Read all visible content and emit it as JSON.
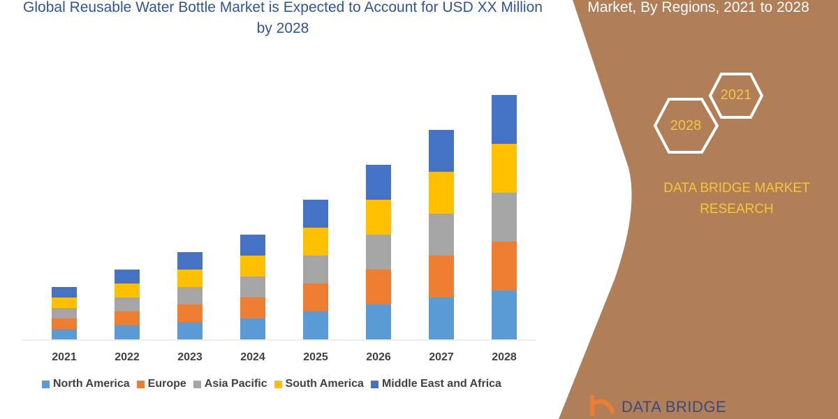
{
  "title_left": "Global Reusable Water Bottle Market is Expected to Account for USD XX Million by 2028",
  "title_right": "Market, By Regions, 2021 to 2028",
  "hexagons": [
    "2021",
    "2028"
  ],
  "brand": "DATA BRIDGE MARKET RESEARCH",
  "logo_text": "DATA BRIDGE",
  "colors": {
    "panel": "#B07F57",
    "hex_text": "#F5C542",
    "title": "#2F5597"
  },
  "chart_data": {
    "type": "bar",
    "stacked": true,
    "categories": [
      "2021",
      "2022",
      "2023",
      "2024",
      "2025",
      "2026",
      "2027",
      "2028"
    ],
    "note_units": "relative (no value axis shown)",
    "series": [
      {
        "name": "North America",
        "color": "#5B9BD5",
        "values": [
          15,
          20,
          25,
          30,
          40,
          50,
          60,
          70
        ]
      },
      {
        "name": "Europe",
        "color": "#ED7D31",
        "values": [
          15,
          20,
          25,
          30,
          40,
          50,
          60,
          70
        ]
      },
      {
        "name": "Asia Pacific",
        "color": "#A5A5A5",
        "values": [
          15,
          20,
          25,
          30,
          40,
          50,
          60,
          70
        ]
      },
      {
        "name": "South America",
        "color": "#FFC000",
        "values": [
          15,
          20,
          25,
          30,
          40,
          50,
          60,
          70
        ]
      },
      {
        "name": "Middle East and Africa",
        "color": "#4472C4",
        "values": [
          15,
          20,
          25,
          30,
          40,
          50,
          60,
          70
        ]
      }
    ],
    "legend": "bottom",
    "grid": false
  }
}
